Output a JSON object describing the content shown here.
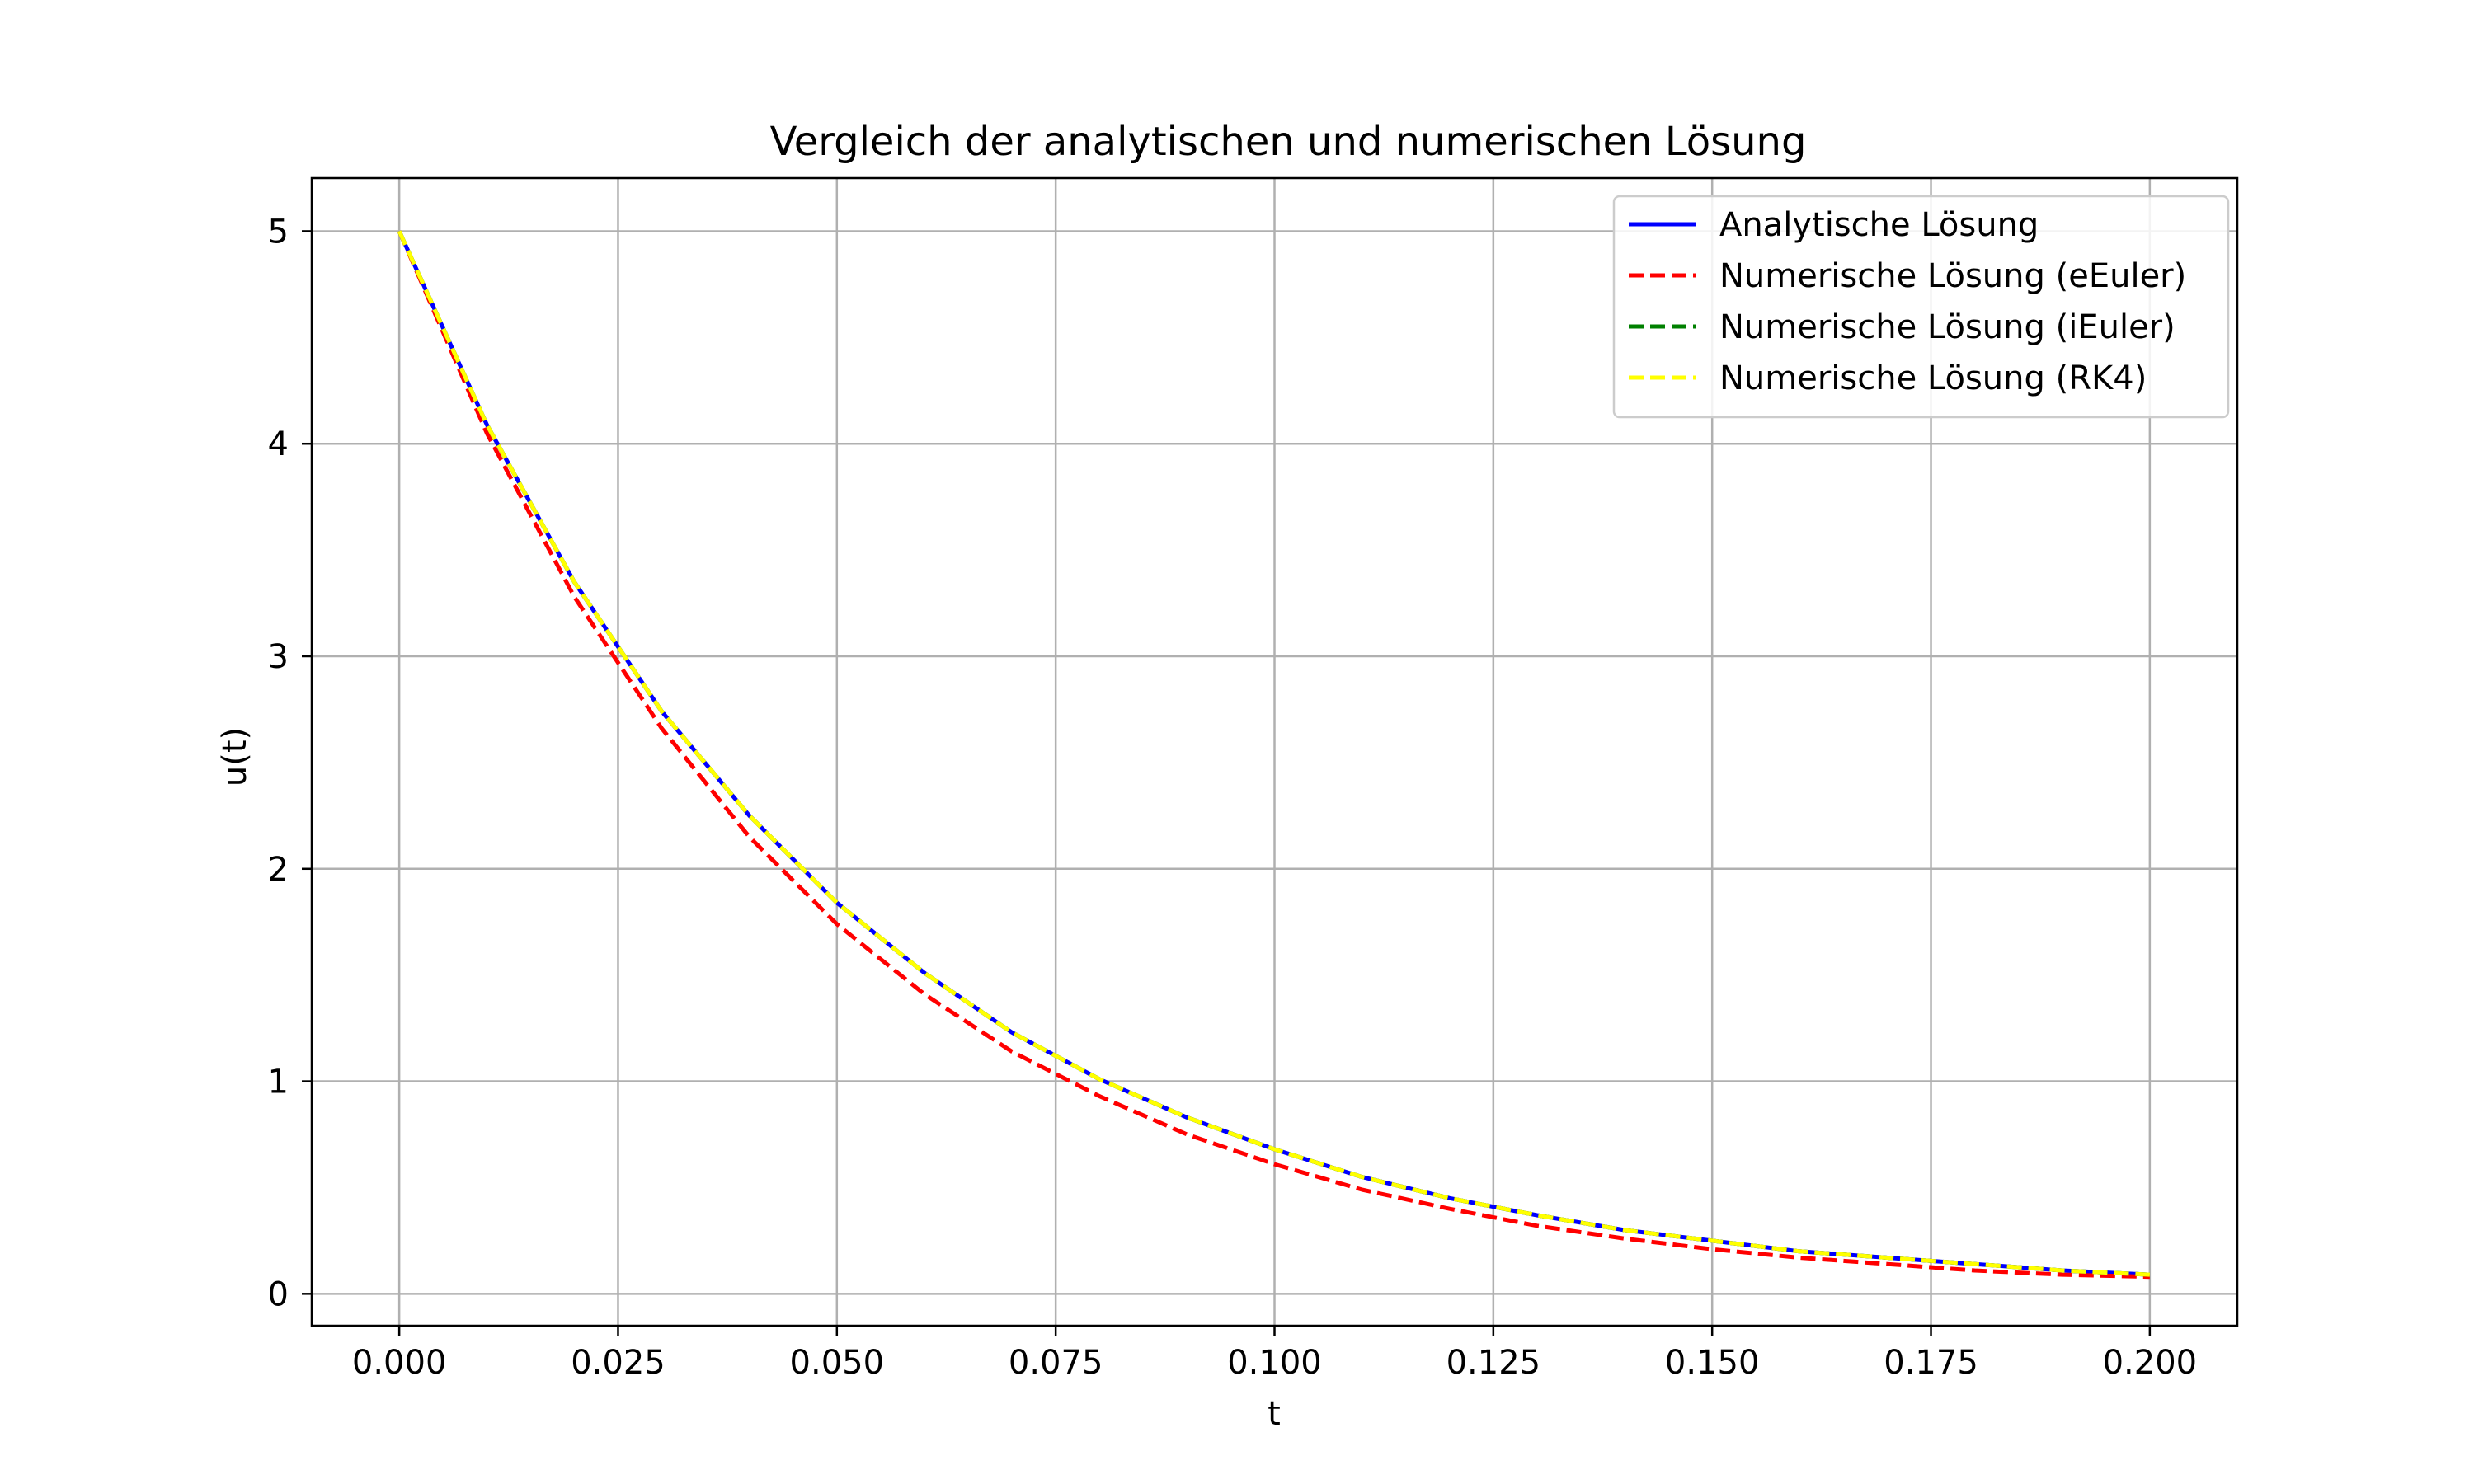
{
  "chart_data": {
    "type": "line",
    "title": "Vergleich der analytischen und numerischen Lösung",
    "xlabel": "t",
    "ylabel": "u(t)",
    "xlim": [
      -0.01,
      0.21
    ],
    "ylim": [
      -0.15,
      5.25
    ],
    "xticks": [
      "0.000",
      "0.025",
      "0.050",
      "0.075",
      "0.100",
      "0.125",
      "0.150",
      "0.175",
      "0.200"
    ],
    "yticks": [
      "0",
      "1",
      "2",
      "3",
      "4",
      "5"
    ],
    "grid": true,
    "legend_position": "top-right",
    "x": [
      0.0,
      0.01,
      0.02,
      0.03,
      0.04,
      0.05,
      0.06,
      0.07,
      0.08,
      0.09,
      0.1,
      0.11,
      0.12,
      0.13,
      0.14,
      0.15,
      0.16,
      0.17,
      0.18,
      0.19,
      0.2
    ],
    "series": [
      {
        "name": "Analytische Lösung",
        "color": "#0000ff",
        "style": "solid",
        "values": [
          5.0,
          4.09,
          3.35,
          2.74,
          2.25,
          1.84,
          1.51,
          1.23,
          1.01,
          0.83,
          0.68,
          0.55,
          0.45,
          0.37,
          0.3,
          0.25,
          0.2,
          0.17,
          0.14,
          0.11,
          0.09
        ]
      },
      {
        "name": "Numerische Lösung (eEuler)",
        "color": "#ff0000",
        "style": "dashed",
        "values": [
          5.0,
          4.05,
          3.28,
          2.66,
          2.15,
          1.74,
          1.41,
          1.14,
          0.93,
          0.75,
          0.61,
          0.49,
          0.4,
          0.32,
          0.26,
          0.21,
          0.17,
          0.14,
          0.11,
          0.09,
          0.08
        ]
      },
      {
        "name": "Numerische Lösung (iEuler)",
        "color": "#008000",
        "style": "dashed",
        "values": [
          5.0,
          4.09,
          3.35,
          2.74,
          2.25,
          1.84,
          1.51,
          1.23,
          1.01,
          0.83,
          0.68,
          0.55,
          0.45,
          0.37,
          0.3,
          0.25,
          0.2,
          0.17,
          0.14,
          0.11,
          0.09
        ]
      },
      {
        "name": "Numerische Lösung (RK4)",
        "color": "#ffff00",
        "style": "dashed",
        "values": [
          5.0,
          4.09,
          3.35,
          2.74,
          2.25,
          1.84,
          1.51,
          1.23,
          1.01,
          0.83,
          0.68,
          0.55,
          0.45,
          0.37,
          0.3,
          0.25,
          0.2,
          0.17,
          0.14,
          0.11,
          0.09
        ]
      }
    ]
  }
}
